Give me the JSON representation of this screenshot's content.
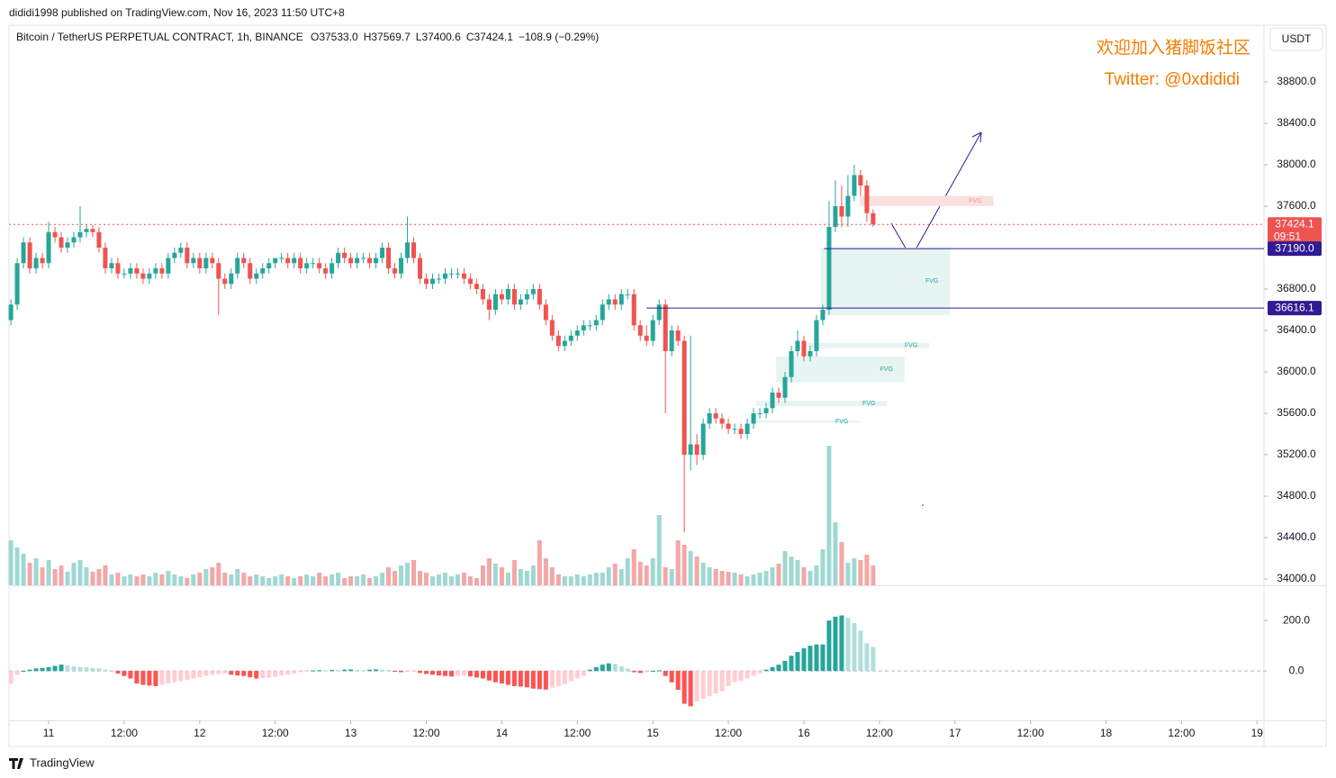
{
  "header": {
    "publisher": "dididi1998 published on TradingView.com, Nov 16, 2023 11:50 UTC+8"
  },
  "chart_data": {
    "type": "candlestick",
    "title": "Bitcoin / TetherUS PERPETUAL CONTRACT, 1h, BINANCE",
    "ohlc_labels": [
      "O37533.0",
      "H37569.7",
      "L37400.6",
      "C37424.1",
      "−108.9 (−0.29%)"
    ],
    "currency": "USDT",
    "watermark": [
      "欢迎加入猪脚饭社区",
      "Twitter: @0xdididi"
    ],
    "x_start": -6,
    "x_step": 1,
    "open": [
      36500,
      36650,
      37050,
      37250,
      37000,
      37100,
      37050,
      37350,
      37300,
      37200,
      37250,
      37300,
      37350,
      37380,
      37350,
      37200,
      37000,
      37050,
      36950,
      36950,
      37000,
      36950,
      36900,
      36950,
      37000,
      36950,
      37100,
      37150,
      37200,
      37050,
      37100,
      37000,
      37100,
      37050,
      36900,
      36850,
      36950,
      37100,
      37050,
      36900,
      36950,
      37000,
      37050,
      37100,
      37100,
      37050,
      37100,
      37000,
      37050,
      37050,
      37000,
      36950,
      37050,
      37150,
      37100,
      37050,
      37100,
      37100,
      37050,
      37100,
      37200,
      37000,
      36950,
      37100,
      37250,
      37100,
      36900,
      36850,
      36900,
      36900,
      36950,
      36950,
      36950,
      36900,
      36850,
      36800,
      36700,
      36600,
      36750,
      36700,
      36800,
      36650,
      36700,
      36750,
      36800,
      36650,
      36500,
      36350,
      36250,
      36300,
      36350,
      36400,
      36450,
      36450,
      36500,
      36650,
      36700,
      36650,
      36750,
      36750,
      36450,
      36350,
      36300,
      36500,
      36650,
      36200,
      36400,
      36300,
      35200,
      35300,
      35200,
      35500,
      35600,
      35550,
      35500,
      35450,
      35450,
      35400,
      35500,
      35600,
      35600,
      35650,
      35800,
      35750,
      35950,
      36200,
      36300,
      36150,
      36200,
      36500,
      36600,
      37400,
      37600,
      37500,
      37700,
      37900,
      37800,
      37533.0
    ],
    "high": [
      36700,
      37100,
      37300,
      37300,
      37150,
      37150,
      37450,
      37400,
      37350,
      37300,
      37350,
      37600,
      37420,
      37420,
      37400,
      37250,
      37100,
      37100,
      37000,
      37050,
      37050,
      37000,
      37000,
      37050,
      37050,
      37150,
      37200,
      37250,
      37250,
      37150,
      37150,
      37150,
      37150,
      37100,
      36950,
      37000,
      37150,
      37150,
      37100,
      37000,
      37050,
      37100,
      37100,
      37150,
      37150,
      37150,
      37150,
      37100,
      37100,
      37100,
      37050,
      37100,
      37200,
      37200,
      37150,
      37150,
      37150,
      37150,
      37150,
      37250,
      37250,
      37050,
      37150,
      37500,
      37300,
      37150,
      36950,
      36950,
      36950,
      37000,
      37000,
      37000,
      37000,
      36950,
      36900,
      36850,
      36750,
      36800,
      36800,
      36850,
      36850,
      36750,
      36800,
      36850,
      36850,
      36700,
      36550,
      36400,
      36350,
      36400,
      36450,
      36500,
      36500,
      36550,
      36700,
      36750,
      36750,
      36800,
      36800,
      36800,
      36500,
      36450,
      36550,
      36700,
      36700,
      36450,
      36450,
      36350,
      36350,
      35400,
      35550,
      35650,
      35650,
      35600,
      35550,
      35500,
      35500,
      35550,
      35650,
      35650,
      35700,
      35850,
      35850,
      36000,
      36250,
      36400,
      36350,
      36250,
      36550,
      36650,
      37650,
      37850,
      37800,
      37900,
      38000,
      37950,
      37850,
      37569.7
    ],
    "low": [
      36450,
      36600,
      37000,
      36950,
      36950,
      37000,
      37000,
      37250,
      37150,
      37150,
      37200,
      37250,
      37300,
      37300,
      37150,
      36950,
      36950,
      36900,
      36900,
      36900,
      36900,
      36850,
      36850,
      36900,
      36900,
      36900,
      37050,
      37100,
      37000,
      37000,
      36950,
      36950,
      37000,
      36550,
      36800,
      36800,
      36900,
      37000,
      36850,
      36850,
      36900,
      36950,
      37000,
      37050,
      37000,
      37000,
      36950,
      36950,
      37000,
      36950,
      36900,
      36900,
      37000,
      37050,
      37000,
      37000,
      37050,
      37000,
      37000,
      37050,
      36950,
      36900,
      36900,
      37050,
      37050,
      36850,
      36800,
      36800,
      36850,
      36850,
      36900,
      36900,
      36850,
      36800,
      36750,
      36650,
      36500,
      36550,
      36650,
      36650,
      36600,
      36600,
      36650,
      36700,
      36600,
      36450,
      36300,
      36200,
      36200,
      36250,
      36300,
      36350,
      36400,
      36400,
      36450,
      36600,
      36600,
      36600,
      36700,
      36400,
      36300,
      36250,
      36250,
      36450,
      35600,
      36150,
      36250,
      34450,
      35050,
      35100,
      35150,
      35450,
      35500,
      35450,
      35400,
      35400,
      35350,
      35350,
      35450,
      35550,
      35550,
      35600,
      35700,
      35700,
      35900,
      36150,
      36100,
      36100,
      36150,
      36450,
      36550,
      37350,
      37400,
      37400,
      37650,
      37700,
      37450,
      37400.6
    ],
    "close": [
      36650,
      37050,
      37250,
      37000,
      37100,
      37050,
      37350,
      37300,
      37200,
      37250,
      37300,
      37350,
      37380,
      37350,
      37200,
      37000,
      37050,
      36950,
      36950,
      37000,
      36950,
      36900,
      36950,
      37000,
      36950,
      37100,
      37150,
      37200,
      37050,
      37100,
      37000,
      37100,
      37050,
      36900,
      36850,
      36950,
      37100,
      37050,
      36900,
      36950,
      37000,
      37050,
      37100,
      37100,
      37050,
      37100,
      37000,
      37050,
      37050,
      37000,
      36950,
      37050,
      37150,
      37100,
      37050,
      37100,
      37100,
      37050,
      37100,
      37200,
      37000,
      36950,
      37100,
      37250,
      37100,
      36900,
      36850,
      36900,
      36900,
      36950,
      36950,
      36950,
      36900,
      36850,
      36800,
      36700,
      36600,
      36750,
      36700,
      36800,
      36650,
      36700,
      36750,
      36800,
      36650,
      36500,
      36350,
      36250,
      36300,
      36350,
      36400,
      36450,
      36450,
      36500,
      36650,
      36700,
      36650,
      36750,
      36750,
      36450,
      36350,
      36300,
      36500,
      36650,
      36200,
      36400,
      36300,
      35200,
      35300,
      35200,
      35500,
      35600,
      35550,
      35500,
      35450,
      35450,
      35400,
      35500,
      35600,
      35600,
      35650,
      35800,
      35750,
      35950,
      36200,
      36300,
      36150,
      36200,
      36500,
      36600,
      37400,
      37600,
      37500,
      37700,
      37900,
      37800,
      37533,
      37424.1
    ],
    "up_color": "#26a69a",
    "down_color": "#ef5350",
    "xlim": [
      -6.3,
      193.1
    ],
    "xticks": [
      {
        "value": 0,
        "label": "11"
      },
      {
        "value": 12,
        "label": "12:00"
      },
      {
        "value": 24,
        "label": "12"
      },
      {
        "value": 36,
        "label": "12:00"
      },
      {
        "value": 48,
        "label": "13"
      },
      {
        "value": 60,
        "label": "12:00"
      },
      {
        "value": 72,
        "label": "14"
      },
      {
        "value": 84,
        "label": "12:00"
      },
      {
        "value": 96,
        "label": "15"
      },
      {
        "value": 108,
        "label": "12:00"
      },
      {
        "value": 120,
        "label": "16"
      },
      {
        "value": 132,
        "label": "12:00"
      },
      {
        "value": 144,
        "label": "17"
      },
      {
        "value": 156,
        "label": "12:00"
      },
      {
        "value": 168,
        "label": "18"
      },
      {
        "value": 180,
        "label": "12:00"
      },
      {
        "value": 192,
        "label": "19"
      }
    ],
    "ylim": [
      33939,
      39348
    ],
    "yticks": [
      {
        "value": 38800,
        "label": "38800.0"
      },
      {
        "value": 38400,
        "label": "38400.0"
      },
      {
        "value": 38000,
        "label": "38000.0"
      },
      {
        "value": 37600,
        "label": "37600.0"
      },
      {
        "value": 36800,
        "label": "36800.0"
      },
      {
        "value": 36400,
        "label": "36400.0"
      },
      {
        "value": 36000,
        "label": "36000.0"
      },
      {
        "value": 35600,
        "label": "35600.0"
      },
      {
        "value": 35200,
        "label": "35200.0"
      },
      {
        "value": 34800,
        "label": "34800.0"
      },
      {
        "value": 34400,
        "label": "34400.0"
      },
      {
        "value": 34000,
        "label": "34000.0"
      }
    ],
    "price_lines": [
      {
        "value": 37424.1,
        "label": "37424.1",
        "countdown": "09:51",
        "color": "#ef5350",
        "style": "dotted",
        "x_from": -6.3
      },
      {
        "value": 37190,
        "label": "37190.0",
        "color": "#311b92",
        "style": "solid",
        "x_from": 123.2
      },
      {
        "value": 36616.1,
        "label": "36616.1",
        "color": "#311b92",
        "style": "solid",
        "x_from": 95
      }
    ],
    "fvg": [
      {
        "label": "FVG",
        "top": 37700,
        "bottom": 37600,
        "x": [
          128.9,
          150.1
        ],
        "color": "#fbe0e0",
        "text_color": "#ef9a9a"
      },
      {
        "label": "FVG",
        "top": 37200,
        "bottom": 36550,
        "x": [
          122.7,
          143.2
        ],
        "color": "#e6f4f2",
        "text_color": "#26a69a"
      },
      {
        "label": "FVG",
        "top": 36280,
        "bottom": 36230,
        "x": [
          120.7,
          139.9
        ],
        "color": "#e6f4f2",
        "text_color": "#26a69a"
      },
      {
        "label": "FVG",
        "top": 36150,
        "bottom": 35900,
        "x": [
          115.6,
          136
        ],
        "color": "#e6f4f2",
        "text_color": "#26a69a"
      },
      {
        "label": "FVG",
        "top": 35720,
        "bottom": 35670,
        "x": [
          112.4,
          133.2
        ],
        "color": "#e6f4f2",
        "text_color": "#26a69a"
      },
      {
        "label": "FVG",
        "top": 35530,
        "bottom": 35510,
        "x": [
          111,
          128.9
        ],
        "color": "#e6f4f2",
        "text_color": "#26a69a"
      }
    ],
    "volume": {
      "up_color": "#9fd8d2",
      "down_color": "#f4a7a7",
      "values": [
        50,
        42,
        35,
        25,
        30,
        20,
        28,
        18,
        22,
        15,
        25,
        28,
        20,
        15,
        18,
        22,
        12,
        14,
        10,
        12,
        10,
        12,
        10,
        14,
        12,
        16,
        12,
        10,
        8,
        12,
        14,
        18,
        20,
        25,
        14,
        12,
        18,
        14,
        10,
        12,
        10,
        8,
        10,
        12,
        10,
        8,
        10,
        12,
        10,
        14,
        10,
        12,
        14,
        8,
        10,
        10,
        12,
        8,
        10,
        14,
        20,
        16,
        22,
        25,
        28,
        16,
        14,
        10,
        12,
        14,
        10,
        12,
        14,
        10,
        8,
        22,
        30,
        24,
        20,
        14,
        28,
        18,
        16,
        22,
        50,
        30,
        20,
        12,
        10,
        10,
        12,
        10,
        12,
        14,
        14,
        20,
        24,
        18,
        30,
        40,
        26,
        22,
        30,
        78,
        20,
        18,
        50,
        45,
        38,
        32,
        25,
        20,
        18,
        16,
        15,
        14,
        12,
        10,
        12,
        14,
        16,
        20,
        24,
        38,
        32,
        28,
        20,
        16,
        22,
        40,
        155,
        70,
        48,
        25,
        30,
        28,
        34,
        22
      ]
    },
    "macd": {
      "ylim": [
        -196,
        336
      ],
      "yticks": [
        {
          "value": 200,
          "label": "200.0"
        },
        {
          "value": 0,
          "label": "0.0"
        }
      ],
      "colors": [
        "#26a69a",
        "#b2dfdb",
        "#ff5252",
        "#ffcdd2"
      ],
      "values": [
        -50,
        -15,
        0,
        5,
        10,
        12,
        15,
        20,
        25,
        22,
        18,
        15,
        14,
        12,
        10,
        5,
        0,
        -10,
        -20,
        -30,
        -50,
        -55,
        -58,
        -60,
        -55,
        -50,
        -45,
        -40,
        -35,
        -30,
        -25,
        -20,
        -15,
        -12,
        -10,
        -15,
        -18,
        -20,
        -25,
        -30,
        -28,
        -26,
        -22,
        -18,
        -15,
        -10,
        -5,
        -2,
        2,
        3,
        2,
        4,
        3,
        5,
        6,
        4,
        3,
        5,
        6,
        5,
        4,
        -2,
        -5,
        -3,
        -2,
        -8,
        -12,
        -15,
        -18,
        -20,
        -22,
        -20,
        -18,
        -22,
        -26,
        -30,
        -38,
        -45,
        -50,
        -55,
        -60,
        -62,
        -65,
        -70,
        -72,
        -74,
        -66,
        -60,
        -52,
        -40,
        -30,
        -20,
        5,
        15,
        25,
        30,
        28,
        18,
        10,
        -5,
        -8,
        -5,
        0,
        2,
        -20,
        -45,
        -75,
        -130,
        -140,
        -120,
        -110,
        -100,
        -90,
        -80,
        -60,
        -45,
        -40,
        -30,
        -20,
        -10,
        5,
        15,
        25,
        40,
        60,
        75,
        90,
        100,
        105,
        105,
        200,
        215,
        220,
        210,
        190,
        160,
        110,
        95
      ]
    }
  },
  "footer": {
    "logo": "TradingView"
  }
}
